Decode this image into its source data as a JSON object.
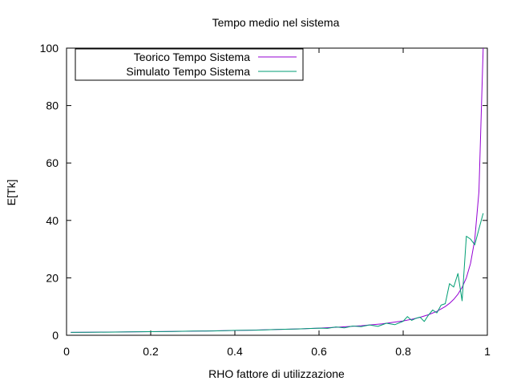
{
  "chart_data": {
    "type": "line",
    "title": "Tempo medio nel sistema",
    "xlabel": "RHO fattore di utilizzazione",
    "ylabel": "E[Tk]",
    "xlim": [
      0,
      1
    ],
    "ylim": [
      0,
      100
    ],
    "xticks": [
      {
        "value": 0,
        "label": "0"
      },
      {
        "value": 0.2,
        "label": "0.2"
      },
      {
        "value": 0.4,
        "label": "0.4"
      },
      {
        "value": 0.6,
        "label": "0.6"
      },
      {
        "value": 0.8,
        "label": "0.8"
      },
      {
        "value": 1,
        "label": "1"
      }
    ],
    "yticks": [
      {
        "value": 0,
        "label": "0"
      },
      {
        "value": 20,
        "label": "20"
      },
      {
        "value": 40,
        "label": "40"
      },
      {
        "value": 60,
        "label": "60"
      },
      {
        "value": 80,
        "label": "80"
      },
      {
        "value": 100,
        "label": "100"
      }
    ],
    "grid": false,
    "legend_position": "top-left",
    "series": [
      {
        "name": "Teorico Tempo Sistema",
        "color": "#9400d3",
        "x": [
          0.01,
          0.05,
          0.1,
          0.15,
          0.2,
          0.25,
          0.3,
          0.35,
          0.4,
          0.45,
          0.5,
          0.55,
          0.6,
          0.65,
          0.7,
          0.75,
          0.8,
          0.82,
          0.84,
          0.86,
          0.88,
          0.9,
          0.91,
          0.92,
          0.93,
          0.94,
          0.95,
          0.96,
          0.97,
          0.98,
          0.99
        ],
        "y": [
          1.01,
          1.05,
          1.11,
          1.18,
          1.25,
          1.33,
          1.43,
          1.54,
          1.67,
          1.82,
          2.0,
          2.22,
          2.5,
          2.86,
          3.33,
          4.0,
          5.0,
          5.56,
          6.25,
          7.14,
          8.33,
          10.0,
          11.11,
          12.5,
          14.29,
          16.67,
          20.0,
          25.0,
          33.33,
          50.0,
          100.0
        ]
      },
      {
        "name": "Simulato Tempo Sistema",
        "color": "#009e73",
        "x": [
          0.01,
          0.05,
          0.1,
          0.15,
          0.2,
          0.25,
          0.3,
          0.35,
          0.4,
          0.45,
          0.5,
          0.55,
          0.6,
          0.62,
          0.64,
          0.66,
          0.68,
          0.7,
          0.72,
          0.74,
          0.76,
          0.78,
          0.8,
          0.81,
          0.82,
          0.83,
          0.84,
          0.85,
          0.86,
          0.87,
          0.88,
          0.89,
          0.9,
          0.91,
          0.92,
          0.93,
          0.94,
          0.95,
          0.96,
          0.97,
          0.98,
          0.99
        ],
        "y": [
          1.0,
          1.05,
          1.1,
          1.2,
          1.25,
          1.3,
          1.45,
          1.5,
          1.7,
          1.8,
          2.0,
          2.2,
          2.5,
          2.4,
          2.9,
          2.6,
          3.2,
          3.0,
          3.6,
          3.1,
          4.2,
          3.7,
          4.9,
          6.5,
          5.2,
          5.9,
          6.3,
          4.8,
          7.0,
          8.8,
          7.8,
          10.5,
          11.0,
          18.0,
          16.8,
          21.5,
          12.0,
          34.5,
          33.5,
          31.5,
          37.0,
          42.5
        ]
      }
    ]
  }
}
